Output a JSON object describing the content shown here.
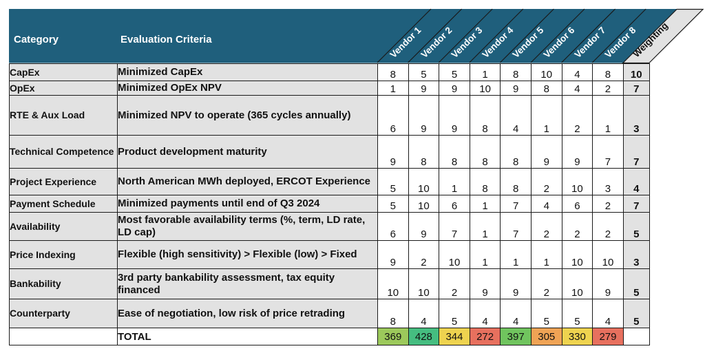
{
  "colors": {
    "header_teal": "#1F5F7C",
    "label_gray": "#E2E2E2",
    "grid_border": "#1A1A1A",
    "header_text": "#FFFFFF"
  },
  "header": {
    "category": "Category",
    "criteria": "Evaluation Criteria",
    "vendors": [
      "Vendor 1",
      "Vendor 2",
      "Vendor 3",
      "Vendor 4",
      "Vendor 5",
      "Vendor 6",
      "Vendor 7",
      "Vendor 8"
    ],
    "weighting": "Weighting"
  },
  "rows": [
    {
      "category": "CapEx",
      "criteria": "Minimized CapEx",
      "scores": [
        8,
        5,
        5,
        1,
        8,
        10,
        4,
        8
      ],
      "weight": 10
    },
    {
      "category": "OpEx",
      "criteria": "Minimized OpEx NPV",
      "scores": [
        1,
        9,
        9,
        10,
        9,
        8,
        4,
        2
      ],
      "weight": 7
    },
    {
      "category": "RTE & Aux Load",
      "criteria": "Minimized NPV to operate (365 cycles annually)",
      "scores": [
        6,
        9,
        9,
        8,
        4,
        1,
        2,
        1
      ],
      "weight": 3
    },
    {
      "category": "Technical Competence",
      "criteria": "Product development maturity",
      "scores": [
        9,
        8,
        8,
        8,
        8,
        9,
        9,
        7
      ],
      "weight": 7
    },
    {
      "category": "Project Experience",
      "criteria": "North American MWh deployed, ERCOT Experience",
      "scores": [
        5,
        10,
        1,
        8,
        8,
        2,
        10,
        3
      ],
      "weight": 4
    },
    {
      "category": "Payment Schedule",
      "criteria": "Minimized payments until end of Q3 2024",
      "scores": [
        5,
        10,
        6,
        1,
        7,
        4,
        6,
        2
      ],
      "weight": 7
    },
    {
      "category": "Availability",
      "criteria": "Most favorable availability terms (%, term, LD rate, LD cap)",
      "scores": [
        6,
        9,
        7,
        1,
        7,
        2,
        2,
        2
      ],
      "weight": 5
    },
    {
      "category": "Price Indexing",
      "criteria": "Flexible (high sensitivity) > Flexible (low) > Fixed",
      "scores": [
        9,
        2,
        10,
        1,
        1,
        1,
        10,
        10
      ],
      "weight": 3
    },
    {
      "category": "Bankability",
      "criteria": "3rd party bankability assessment, tax equity financed",
      "scores": [
        10,
        10,
        2,
        9,
        9,
        2,
        10,
        9
      ],
      "weight": 5
    },
    {
      "category": "Counterparty",
      "criteria": "Ease of negotiation, low risk of price retrading",
      "scores": [
        8,
        4,
        5,
        4,
        4,
        5,
        5,
        4
      ],
      "weight": 5
    }
  ],
  "total": {
    "label": "TOTAL",
    "values": [
      369,
      428,
      344,
      272,
      397,
      305,
      330,
      279
    ],
    "cell_colors": [
      "#9CC95B",
      "#45BD80",
      "#EED34F",
      "#E7705E",
      "#70C45E",
      "#EFA355",
      "#EED34F",
      "#E7705E"
    ]
  },
  "comment_marker": {
    "row_index": 1,
    "col_index": 4,
    "description": "note indicator triangle"
  }
}
